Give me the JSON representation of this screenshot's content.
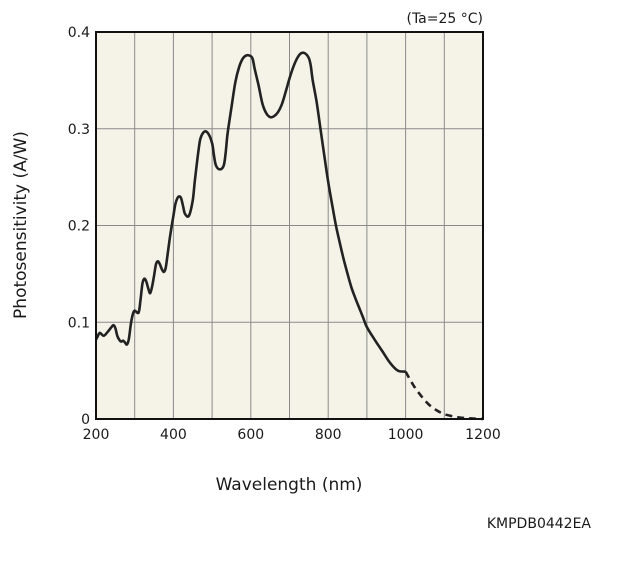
{
  "chart_data": {
    "type": "line",
    "ylabel": "Photosensitivity (A/W)",
    "xlabel": "Wavelength (nm)",
    "condition_note": "(Ta=25 °C)",
    "figure_code": "KMPDB0442EA",
    "xlim": [
      200,
      1200
    ],
    "ylim": [
      0,
      0.4
    ],
    "x_ticks": [
      200,
      400,
      600,
      800,
      1000,
      1200
    ],
    "x_tick_labels": [
      "200",
      "400",
      "600",
      "800",
      "1000",
      "1200"
    ],
    "y_ticks": [
      0,
      0.1,
      0.2,
      0.3,
      0.4
    ],
    "y_tick_labels": [
      "0",
      "0.1",
      "0.2",
      "0.3",
      "0.4"
    ],
    "grid": true,
    "series": [
      {
        "style": "solid",
        "x": [
          200,
          205,
          210,
          220,
          230,
          240,
          245,
          250,
          255,
          260,
          265,
          270,
          275,
          280,
          285,
          290,
          295,
          300,
          310,
          315,
          320,
          325,
          330,
          335,
          340,
          345,
          350,
          355,
          360,
          365,
          370,
          375,
          380,
          385,
          390,
          395,
          400,
          405,
          410,
          415,
          420,
          425,
          430,
          440,
          450,
          455,
          460,
          465,
          470,
          480,
          490,
          500,
          505,
          510,
          520,
          530,
          535,
          540,
          550,
          560,
          570,
          580,
          590,
          600,
          605,
          610,
          620,
          630,
          640,
          650,
          660,
          670,
          680,
          690,
          700,
          710,
          720,
          730,
          740,
          750,
          755,
          760,
          770,
          780,
          790,
          800,
          810,
          820,
          830,
          840,
          850,
          860,
          870,
          880,
          890,
          900,
          920,
          940,
          960,
          980,
          1000
        ],
        "y": [
          0.082,
          0.086,
          0.089,
          0.086,
          0.09,
          0.095,
          0.097,
          0.094,
          0.086,
          0.082,
          0.08,
          0.081,
          0.079,
          0.077,
          0.083,
          0.098,
          0.108,
          0.112,
          0.11,
          0.123,
          0.14,
          0.145,
          0.142,
          0.135,
          0.13,
          0.137,
          0.148,
          0.16,
          0.163,
          0.16,
          0.155,
          0.152,
          0.156,
          0.17,
          0.185,
          0.198,
          0.21,
          0.222,
          0.228,
          0.23,
          0.228,
          0.22,
          0.212,
          0.21,
          0.226,
          0.245,
          0.262,
          0.278,
          0.29,
          0.297,
          0.295,
          0.285,
          0.272,
          0.262,
          0.258,
          0.262,
          0.275,
          0.295,
          0.322,
          0.348,
          0.364,
          0.373,
          0.376,
          0.375,
          0.372,
          0.362,
          0.345,
          0.326,
          0.316,
          0.312,
          0.313,
          0.317,
          0.325,
          0.338,
          0.352,
          0.364,
          0.373,
          0.378,
          0.378,
          0.373,
          0.365,
          0.35,
          0.328,
          0.3,
          0.272,
          0.245,
          0.222,
          0.2,
          0.182,
          0.165,
          0.15,
          0.136,
          0.125,
          0.115,
          0.105,
          0.095,
          0.082,
          0.07,
          0.058,
          0.05,
          0.049
        ]
      },
      {
        "style": "dashed",
        "x": [
          1000,
          1020,
          1040,
          1060,
          1080,
          1100,
          1120,
          1140,
          1160,
          1180,
          1200
        ],
        "y": [
          0.049,
          0.035,
          0.024,
          0.015,
          0.009,
          0.005,
          0.003,
          0.0015,
          0.0008,
          0.0003,
          0.0
        ]
      }
    ],
    "colors": {
      "plot_background": "#f5f3e8",
      "grid": "#8a8a8a",
      "axis": "#111111",
      "curve": "#222222"
    }
  }
}
